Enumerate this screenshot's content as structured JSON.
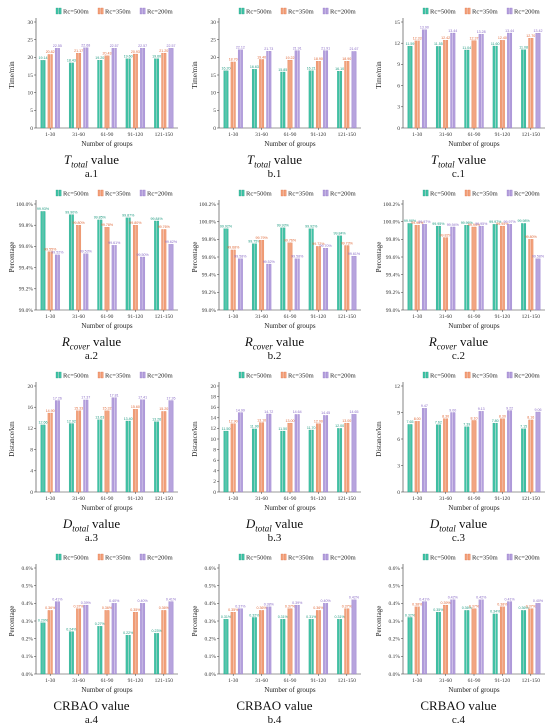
{
  "legend": [
    "Rc=500m",
    "Rc=350m",
    "Rc=200m"
  ],
  "series_colors": [
    "#3fc3a5",
    "#f2a27c",
    "#b4a0dc"
  ],
  "series_stroke": [
    "#1f9a80",
    "#e06a3a",
    "#8a6cc6"
  ],
  "chart_data": [
    {
      "id": "a1",
      "type": "bar",
      "caption_math": "T",
      "caption_sub": "total",
      "caption_tail": " value",
      "caption_label": "a.1",
      "categories": [
        "1-30",
        "31-60",
        "61-90",
        "91-120",
        "121-150"
      ],
      "ylabel": "Time/min",
      "xlabel": "Number of groups",
      "ylim": [
        0,
        30
      ],
      "yticks": [
        0,
        5,
        10,
        15,
        20,
        25,
        30
      ],
      "series": [
        {
          "name": "Rc=500m",
          "values": [
            19.14,
            18.43,
            19.2,
            19.6,
            19.6
          ]
        },
        {
          "name": "Rc=350m",
          "values": [
            20.82,
            21.17,
            20.43,
            20.93,
            21.2
          ]
        },
        {
          "name": "Rc=200m",
          "values": [
            22.55,
            22.68,
            22.57,
            22.57,
            22.57
          ]
        }
      ]
    },
    {
      "id": "b1",
      "type": "bar",
      "caption_math": "T",
      "caption_sub": "total",
      "caption_tail": " value",
      "caption_label": "b.1",
      "categories": [
        "1-30",
        "31-60",
        "61-90",
        "91-120",
        "121-150"
      ],
      "ylabel": "Time/min",
      "xlabel": "Number of groups",
      "ylim": [
        0,
        30
      ],
      "yticks": [
        0,
        5,
        10,
        15,
        20,
        25,
        30
      ],
      "series": [
        {
          "name": "Rc=500m",
          "values": [
            16.2,
            16.63,
            15.85,
            16.21,
            16.1
          ]
        },
        {
          "name": "Rc=350m",
          "values": [
            18.7,
            19.4,
            19.22,
            18.9,
            18.9
          ]
        },
        {
          "name": "Rc=200m",
          "values": [
            22.12,
            21.73,
            21.91,
            21.91,
            21.67
          ]
        }
      ]
    },
    {
      "id": "c1",
      "type": "bar",
      "caption_math": "T",
      "caption_sub": "total",
      "caption_tail": " value",
      "caption_label": "c.1",
      "categories": [
        "1-30",
        "31-60",
        "61-90",
        "91-120",
        "121-150"
      ],
      "ylabel": "Time/min",
      "xlabel": "Number of groups",
      "ylim": [
        0,
        15
      ],
      "yticks": [
        0,
        3,
        6,
        9,
        12,
        15
      ],
      "series": [
        {
          "name": "Rc=500m",
          "values": [
            11.59,
            11.55,
            11.04,
            11.6,
            11.08
          ]
        },
        {
          "name": "Rc=350m",
          "values": [
            12.33,
            12.42,
            12.37,
            12.4,
            12.7
          ]
        },
        {
          "name": "Rc=200m",
          "values": [
            13.9,
            13.44,
            13.28,
            13.44,
            13.42
          ]
        }
      ]
    },
    {
      "id": "a2",
      "type": "bar",
      "caption_math": "R",
      "caption_sub": "cover",
      "caption_tail": " value",
      "caption_label": "a.2",
      "categories": [
        "1-30",
        "31-60",
        "61-90",
        "91-120",
        "121-150"
      ],
      "ylabel": "Percentage",
      "xlabel": "Number of groups",
      "ylim": [
        99.0,
        100.0
      ],
      "yticks": [
        99.0,
        99.2,
        99.4,
        99.6,
        99.8,
        100.0
      ],
      "ytick_labels": [
        "99.0%",
        "99.2%",
        "99.4%",
        "99.6%",
        "99.8%",
        "100.0%"
      ],
      "series": [
        {
          "name": "Rc=500m",
          "values": [
            99.93,
            99.9,
            99.85,
            99.87,
            99.84
          ]
        },
        {
          "name": "Rc=350m",
          "values": [
            99.55,
            99.8,
            99.78,
            99.8,
            99.76
          ]
        },
        {
          "name": "Rc=200m",
          "values": [
            99.52,
            99.53,
            99.61,
            99.5,
            99.62
          ]
        }
      ]
    },
    {
      "id": "b2",
      "type": "bar",
      "caption_math": "R",
      "caption_sub": "cover",
      "caption_tail": " value",
      "caption_label": "b.2",
      "categories": [
        "1-30",
        "31-60",
        "61-90",
        "91-120",
        "121-150"
      ],
      "ylabel": "Percentage",
      "xlabel": "Number of groups",
      "ylim": [
        99.0,
        100.2
      ],
      "yticks": [
        99.0,
        99.2,
        99.4,
        99.6,
        99.8,
        100.0,
        100.2
      ],
      "ytick_labels": [
        "99.0%",
        "99.2%",
        "99.4%",
        "99.6%",
        "99.8%",
        "100.0%",
        "100.2%"
      ],
      "series": [
        {
          "name": "Rc=500m",
          "values": [
            99.92,
            99.75,
            99.93,
            99.92,
            99.84
          ]
        },
        {
          "name": "Rc=350m",
          "values": [
            99.68,
            99.79,
            99.76,
            99.72,
            99.73
          ]
        },
        {
          "name": "Rc=200m",
          "values": [
            99.58,
            99.52,
            99.58,
            99.7,
            99.61
          ]
        }
      ]
    },
    {
      "id": "c2",
      "type": "bar",
      "caption_math": "R",
      "caption_sub": "cover",
      "caption_tail": " value",
      "caption_label": "c.2",
      "categories": [
        "1-30",
        "31-60",
        "61-90",
        "91-120",
        "121-150"
      ],
      "ylabel": "Percentage",
      "xlabel": "Number of groups",
      "ylim": [
        99.0,
        100.2
      ],
      "yticks": [
        99.0,
        99.2,
        99.4,
        99.6,
        99.8,
        100.0,
        100.2
      ],
      "ytick_labels": [
        "99.0%",
        "99.2%",
        "99.4%",
        "99.6%",
        "99.8%",
        "100.0%",
        "100.2%"
      ],
      "series": [
        {
          "name": "Rc=500m",
          "values": [
            99.98,
            99.95,
            99.96,
            99.97,
            99.98
          ]
        },
        {
          "name": "Rc=350m",
          "values": [
            99.96,
            99.82,
            99.94,
            99.95,
            99.8
          ]
        },
        {
          "name": "Rc=200m",
          "values": [
            99.97,
            99.94,
            99.95,
            99.97,
            99.58
          ]
        }
      ]
    },
    {
      "id": "a3",
      "type": "bar",
      "caption_math": "D",
      "caption_sub": "total",
      "caption_tail": " value",
      "caption_label": "a.3",
      "categories": [
        "1-30",
        "31-60",
        "61-90",
        "91-120",
        "121-150"
      ],
      "ylabel": "Distance/km",
      "xlabel": "Number of groups",
      "ylim": [
        0,
        20
      ],
      "yticks": [
        0,
        4,
        8,
        12,
        16,
        20
      ],
      "series": [
        {
          "name": "Rc=500m",
          "values": [
            12.66,
            12.92,
            13.63,
            13.4,
            13.26
          ]
        },
        {
          "name": "Rc=350m",
          "values": [
            14.9,
            15.33,
            15.32,
            15.6,
            15.2
          ]
        },
        {
          "name": "Rc=200m",
          "values": [
            17.26,
            17.37,
            17.81,
            17.41,
            17.26
          ]
        }
      ]
    },
    {
      "id": "b3",
      "type": "bar",
      "caption_math": "D",
      "caption_sub": "total",
      "caption_tail": " value",
      "caption_label": "b.3",
      "categories": [
        "1-30",
        "31-60",
        "61-90",
        "91-120",
        "121-150"
      ],
      "ylabel": "Distance/km",
      "xlabel": "Number of groups",
      "ylim": [
        0,
        20
      ],
      "yticks": [
        0,
        2,
        4,
        6,
        8,
        10,
        12,
        14,
        16,
        18,
        20
      ],
      "series": [
        {
          "name": "Rc=500m",
          "values": [
            11.5,
            11.9,
            11.5,
            11.7,
            12.0
          ]
        },
        {
          "name": "Rc=350m",
          "values": [
            12.9,
            13.1,
            13.0,
            12.9,
            13.0
          ]
        },
        {
          "name": "Rc=200m",
          "values": [
            14.99,
            14.72,
            14.64,
            14.45,
            14.65
          ]
        }
      ]
    },
    {
      "id": "c3",
      "type": "bar",
      "caption_math": "D",
      "caption_sub": "total",
      "caption_tail": " value",
      "caption_label": "c.3",
      "categories": [
        "1-30",
        "31-60",
        "61-90",
        "91-120",
        "121-150"
      ],
      "ylabel": "Distance/km",
      "xlabel": "Number of groups",
      "ylim": [
        0,
        12
      ],
      "yticks": [
        0,
        3,
        6,
        9,
        12
      ],
      "series": [
        {
          "name": "Rc=500m",
          "values": [
            7.65,
            7.62,
            7.39,
            7.8,
            7.15
          ]
        },
        {
          "name": "Rc=350m",
          "values": [
            8.0,
            8.3,
            8.1,
            8.3,
            8.16
          ]
        },
        {
          "name": "Rc=200m",
          "values": [
            9.47,
            9.0,
            9.13,
            9.22,
            9.06
          ]
        }
      ]
    },
    {
      "id": "a4",
      "type": "bar",
      "caption_math": "",
      "caption_sub": "",
      "caption_tail": "CRBAO value",
      "caption_label": "a.4",
      "categories": [
        "1-30",
        "31-60",
        "61-90",
        "91-120",
        "121-150"
      ],
      "ylabel": "Percentage",
      "xlabel": "Number of groups",
      "ylim": [
        0,
        0.6
      ],
      "yticks": [
        0,
        0.1,
        0.2,
        0.3,
        0.4,
        0.5,
        0.6
      ],
      "ytick_labels": [
        "0.0%",
        "0.1%",
        "0.2%",
        "0.3%",
        "0.4%",
        "0.5%",
        "0.6%"
      ],
      "series": [
        {
          "name": "Rc=500m",
          "values": [
            0.29,
            0.24,
            0.27,
            0.22,
            0.23
          ]
        },
        {
          "name": "Rc=350m",
          "values": [
            0.36,
            0.37,
            0.36,
            0.35,
            0.36
          ]
        },
        {
          "name": "Rc=200m",
          "values": [
            0.41,
            0.39,
            0.4,
            0.4,
            0.41
          ]
        }
      ]
    },
    {
      "id": "b4",
      "type": "bar",
      "caption_math": "",
      "caption_sub": "",
      "caption_tail": "CRBAO value",
      "caption_label": "b.4",
      "categories": [
        "1-30",
        "31-60",
        "61-90",
        "91-120",
        "121-150"
      ],
      "ylabel": "Percentage",
      "xlabel": "Number of groups",
      "ylim": [
        0,
        0.6
      ],
      "yticks": [
        0,
        0.1,
        0.2,
        0.3,
        0.4,
        0.5,
        0.6
      ],
      "ytick_labels": [
        "0.0%",
        "0.1%",
        "0.2%",
        "0.3%",
        "0.4%",
        "0.5%",
        "0.6%"
      ],
      "series": [
        {
          "name": "Rc=500m",
          "values": [
            0.31,
            0.32,
            0.31,
            0.31,
            0.31
          ]
        },
        {
          "name": "Rc=350m",
          "values": [
            0.35,
            0.36,
            0.37,
            0.36,
            0.37
          ]
        },
        {
          "name": "Rc=200m",
          "values": [
            0.37,
            0.38,
            0.39,
            0.4,
            0.42
          ]
        }
      ]
    },
    {
      "id": "c4",
      "type": "bar",
      "caption_math": "",
      "caption_sub": "",
      "caption_tail": "CRBAO value",
      "caption_label": "c.4",
      "categories": [
        "1-30",
        "31-60",
        "61-90",
        "91-120",
        "121-150"
      ],
      "ylabel": "Percentage",
      "xlabel": "Number of groups",
      "ylim": [
        0,
        0.6
      ],
      "yticks": [
        0,
        0.1,
        0.2,
        0.3,
        0.4,
        0.5,
        0.6
      ],
      "ytick_labels": [
        "0.0%",
        "0.1%",
        "0.2%",
        "0.3%",
        "0.4%",
        "0.5%",
        "0.6%"
      ],
      "series": [
        {
          "name": "Rc=500m",
          "values": [
            0.32,
            0.35,
            0.36,
            0.34,
            0.36
          ]
        },
        {
          "name": "Rc=350m",
          "values": [
            0.38,
            0.39,
            0.37,
            0.38,
            0.37
          ]
        },
        {
          "name": "Rc=200m",
          "values": [
            0.41,
            0.42,
            0.42,
            0.41,
            0.4
          ]
        }
      ]
    }
  ]
}
